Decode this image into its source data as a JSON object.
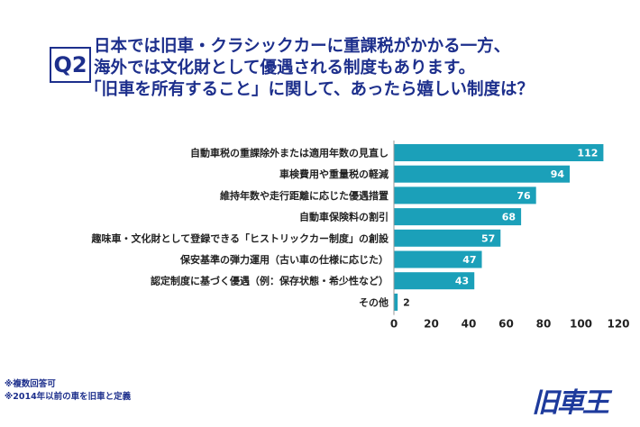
{
  "header": {
    "q_label": "Q2",
    "title_lines": [
      "日本では旧車・クラシックカーに重課税がかかる一方、",
      "海外では文化財として優遇される制度もあります。",
      "「旧車を所有すること」に関して、あったら嬉しい制度は？"
    ]
  },
  "chart_data": {
    "type": "bar",
    "orientation": "horizontal",
    "categories": [
      "自動車税の重課除外または適用年数の見直し",
      "車検費用や重量税の軽減",
      "維持年数や走行距離に応じた優遇措置",
      "自動車保険料の割引",
      "趣味車・文化財として登録できる「ヒストリックカー制度」の創設",
      "保安基準の弾力運用（古い車の仕様に応じた）",
      "認定制度に基づく優遇（例：保存状態・希少性など）",
      "その他"
    ],
    "values": [
      112,
      94,
      76,
      68,
      57,
      47,
      43,
      2
    ],
    "xlim": [
      0,
      120
    ],
    "xticks": [
      "0",
      "20",
      "40",
      "60",
      "80",
      "100",
      "120"
    ],
    "bar_color": "#1ba0b9",
    "grid": false
  },
  "footer": {
    "notes": [
      "※複数回答可",
      "※2014年以前の車を旧車と定義"
    ],
    "logo": "旧車王"
  }
}
